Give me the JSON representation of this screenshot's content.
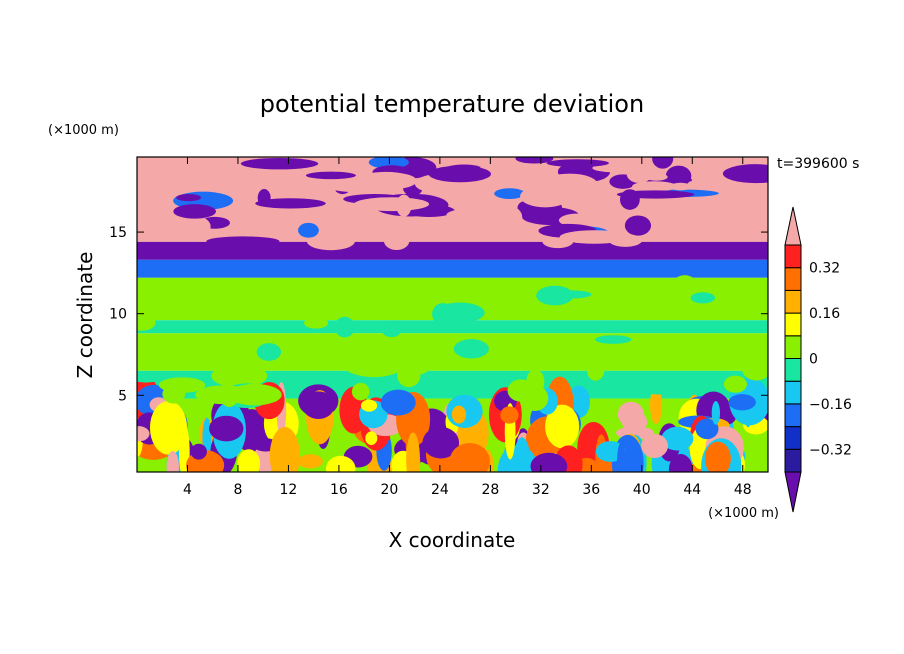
{
  "chart_data": {
    "type": "heatmap",
    "title": "potential temperature deviation",
    "time_label": "t=399600 s",
    "xlabel": "X coordinate",
    "ylabel": "Z coordinate",
    "x_unit": "(×1000 m)",
    "y_unit": "(×1000 m)",
    "xlim": [
      0,
      50
    ],
    "ylim": [
      0.3,
      19.6
    ],
    "x_ticks": [
      4,
      8,
      12,
      16,
      20,
      24,
      28,
      32,
      36,
      40,
      44,
      48
    ],
    "y_ticks": [
      5,
      10,
      15
    ],
    "colorbar": {
      "levels": [
        -0.48,
        -0.4,
        -0.32,
        -0.24,
        -0.16,
        -0.08,
        0,
        0.08,
        0.16,
        0.24,
        0.32,
        0.4,
        0.48
      ],
      "colors": [
        "#6a0dad",
        "#2b1b9e",
        "#1030c8",
        "#1e6ef5",
        "#18c8f0",
        "#19e6a0",
        "#88f000",
        "#ffff00",
        "#ffb000",
        "#ff7000",
        "#ff2020",
        "#f5a8a8"
      ],
      "tick_labels": [
        "0.32",
        "0.16",
        "0",
        "−0.16",
        "−0.32"
      ],
      "tick_values": [
        0.32,
        0.16,
        0,
        -0.16,
        -0.32
      ],
      "extend": "both"
    },
    "bands": [
      {
        "z_from": 14.4,
        "z_to": 19.6,
        "level": 0.48,
        "pattern": "mixed upper layer (pink / purple)"
      },
      {
        "z_from": 13.3,
        "z_to": 14.4,
        "level": -0.48
      },
      {
        "z_from": 12.2,
        "z_to": 13.3,
        "level": -0.24
      },
      {
        "z_from": 9.6,
        "z_to": 12.2,
        "level": 0.04
      },
      {
        "z_from": 8.8,
        "z_to": 9.6,
        "level": -0.04
      },
      {
        "z_from": 6.5,
        "z_to": 8.8,
        "level": 0.04
      },
      {
        "z_from": 4.8,
        "z_to": 6.5,
        "level": -0.04
      },
      {
        "z_from": 0.3,
        "z_to": 4.8,
        "level": 0.0,
        "pattern": "convective boundary layer, mixed"
      }
    ]
  }
}
